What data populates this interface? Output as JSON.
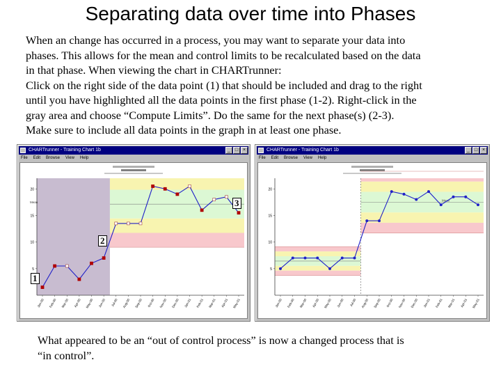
{
  "slide": {
    "title": "Separating data over time into Phases",
    "instructions": [
      "When an change has occurred in a process, you may want to separate your data into",
      "phases.   This allows for the mean and control limits to be recalculated based on the data",
      "in that phase.  When viewing the chart in CHARTrunner:",
      "Click on the right side of the data point (1) that should be included and drag to the right",
      "until you have highlighted all the data points in the first phase (1-2).   Right-click in the",
      "gray area and choose “Compute Limits”.   Do the same for the next phase(s) (2-3).",
      "Make sure to include all data points in the graph in at least one phase."
    ],
    "conclusion": [
      "What appeared to be an “out of control process” is now a changed process that is",
      "“in control”."
    ]
  },
  "windows": [
    {
      "title": "CHARTrunner - Training Chart 1b",
      "menus": [
        "File",
        "Edit",
        "Browse",
        "View",
        "Help"
      ],
      "buttons": {
        "minimize": "_",
        "maximize": "□",
        "close": "×"
      },
      "chart_data": {
        "type": "line",
        "y_tick_labels": [
          "20",
          "15",
          "10",
          "5"
        ],
        "x_tick_labels": [
          "Jan-00",
          "Feb-00",
          "Mar-00",
          "Apr-00",
          "May-00",
          "Jun-00",
          "Jul-00",
          "Aug-00",
          "Sep-00",
          "Oct-00",
          "Nov-00",
          "Dec-00",
          "Jan-01",
          "Feb-01",
          "Mar-01",
          "Apr-01",
          "May-01"
        ],
        "center_line_label": "Mean",
        "values": [
          1.5,
          5.5,
          5.5,
          3.0,
          6.0,
          7.0,
          13.5,
          13.5,
          13.5,
          20.5,
          20.0,
          19.0,
          20.5,
          16.0,
          18.0,
          18.5,
          15.5
        ],
        "point_states": [
          "out",
          "out",
          "in",
          "out",
          "out",
          "out",
          "in",
          "in",
          "in",
          "out",
          "out",
          "out",
          "in",
          "out",
          "in",
          "in",
          "out"
        ],
        "highlighted_range": [
          0,
          5
        ],
        "band_start_index": 6,
        "colors": {
          "line": "#2020c8",
          "out_point": "#b00000",
          "highlight": "#c8bcd0",
          "band_outer": "#f8c8cc",
          "band_middle": "#f8f4b0",
          "band_inner": "#dcf8d4",
          "center_line": "#808080"
        }
      },
      "callouts": [
        "3",
        "2",
        "1"
      ]
    },
    {
      "title": "CHARTrunner - Training Chart 1b",
      "menus": [
        "File",
        "Edit",
        "Browse",
        "View",
        "Help"
      ],
      "buttons": {
        "minimize": "_",
        "maximize": "□",
        "close": "×"
      },
      "chart_data": {
        "type": "line",
        "y_tick_labels": [
          "20",
          "15",
          "10",
          "5"
        ],
        "x_tick_labels": [
          "Jan-00",
          "Feb-00",
          "Mar-00",
          "Apr-00",
          "May-00",
          "Jun-00",
          "Jul-00",
          "Aug-00",
          "Sep-00",
          "Oct-00",
          "Nov-00",
          "Dec-00",
          "Jan-01",
          "Feb-01",
          "Mar-01",
          "Apr-01",
          "May-01"
        ],
        "center_line_label": "Mean",
        "values": [
          5.0,
          7.0,
          7.0,
          7.0,
          5.0,
          7.0,
          7.0,
          14.0,
          14.0,
          19.5,
          19.0,
          18.0,
          19.5,
          17.0,
          18.5,
          18.5,
          17.0
        ],
        "point_states": [
          "in",
          "in",
          "in",
          "in",
          "in",
          "in",
          "in",
          "in",
          "in",
          "in",
          "in",
          "in",
          "in",
          "in",
          "in",
          "in",
          "in"
        ],
        "phases": [
          {
            "start": 0,
            "end": 6
          },
          {
            "start": 7,
            "end": 16
          }
        ],
        "colors": {
          "line": "#2020c8",
          "band_outer": "#f8c8cc",
          "band_middle": "#f8f4b0",
          "band_inner": "#dcf8d4",
          "center_line": "#808080"
        }
      }
    }
  ]
}
